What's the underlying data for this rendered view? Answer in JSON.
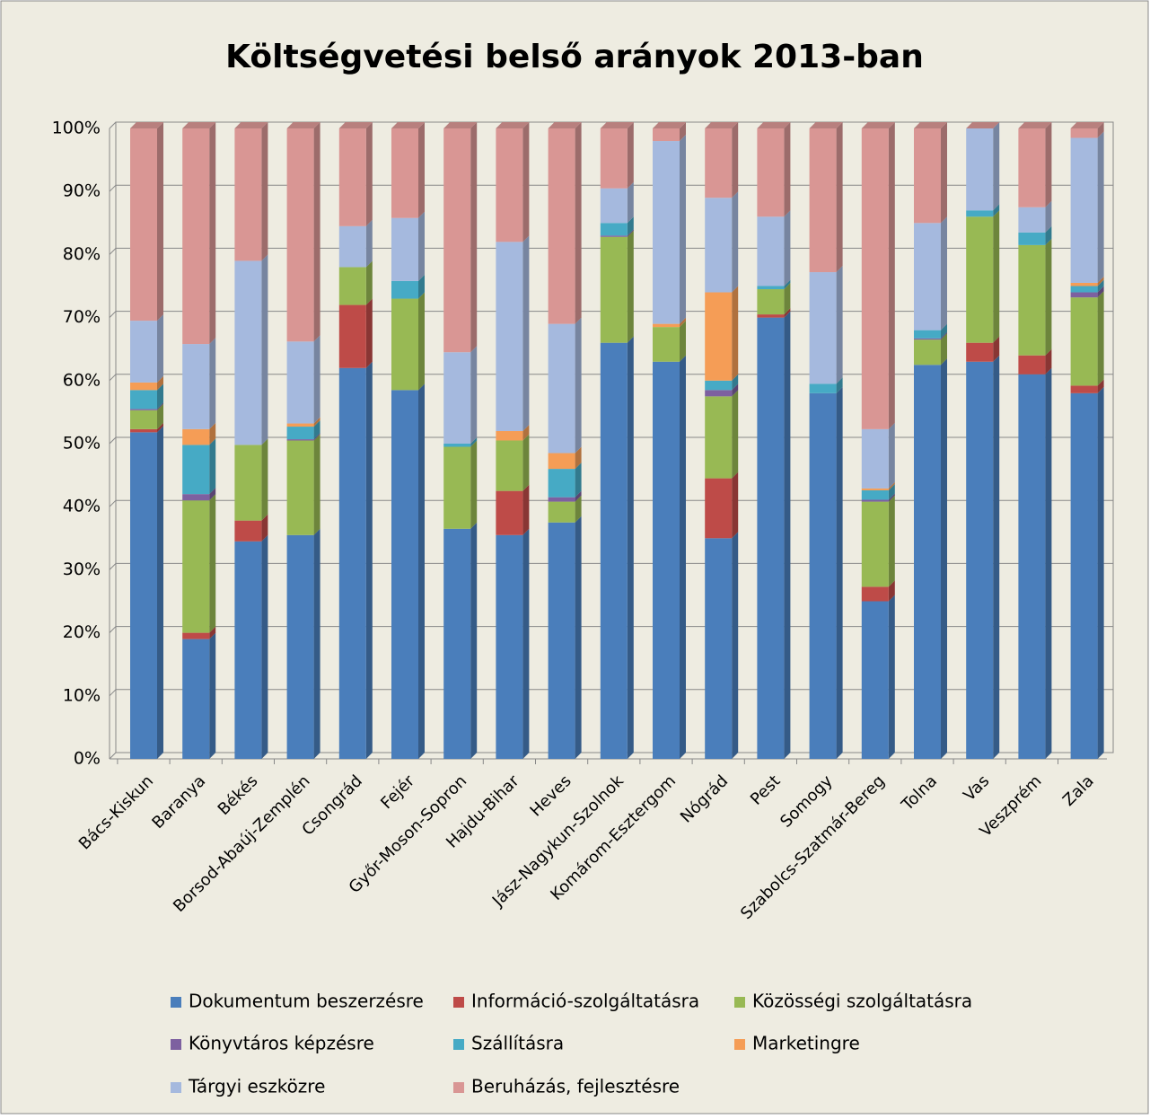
{
  "chart_data": {
    "type": "stacked_bar",
    "title": "Költségvetési belső arányok 2013-ban",
    "categories": [
      "Bács-Kiskun",
      "Baranya",
      "Békés",
      "Borsod-Abaúj-Zemplén",
      "Csongrád",
      "Fejér",
      "Győr-Moson-Sopron",
      "Hajdu-Bihar",
      "Heves",
      "Jász-Nagykun-Szolnok",
      "Komárom-Esztergom",
      "Nógrád",
      "Pest",
      "Somogy",
      "Szabolcs-Szatmár-Bereg",
      "Tolna",
      "Vas",
      "Veszprém",
      "Zala"
    ],
    "series": [
      {
        "name": "Dokumentum beszerzésre",
        "color": "#4a7ebb",
        "values": [
          51.8,
          19,
          34.5,
          35.5,
          62,
          58.5,
          36.5,
          35.5,
          37.5,
          66,
          63,
          35,
          70,
          58,
          25,
          62.5,
          63,
          61,
          58
        ]
      },
      {
        "name": "Információ-szolgáltatásra",
        "color": "#be4b48",
        "values": [
          0.5,
          1,
          3.3,
          0,
          10,
          0,
          0,
          7,
          0,
          0,
          0,
          9.5,
          0.5,
          0,
          2.3,
          0,
          3,
          3,
          1.2
        ]
      },
      {
        "name": "Közösségi szolgáltatásra",
        "color": "#98b954",
        "values": [
          3,
          21,
          12,
          15,
          6,
          14.5,
          13,
          8,
          3.3,
          16.8,
          5.5,
          13,
          4,
          0,
          13.5,
          4,
          20,
          17.5,
          14
        ]
      },
      {
        "name": "Könyvtáros képzésre",
        "color": "#7d60a0",
        "values": [
          0.2,
          1,
          0,
          0.2,
          0,
          0,
          0,
          0,
          0.7,
          0.2,
          0,
          1,
          0,
          0,
          0.3,
          0.2,
          0,
          0,
          0.8
        ]
      },
      {
        "name": "Szállításra",
        "color": "#46aac5",
        "values": [
          3,
          7.8,
          0,
          2,
          0,
          2.8,
          0.5,
          0,
          4.5,
          2,
          0,
          1.5,
          0.5,
          1.5,
          1.5,
          1.3,
          1,
          2,
          1
        ]
      },
      {
        "name": "Marketingre",
        "color": "#f59d56",
        "values": [
          1.2,
          2.5,
          0,
          0.5,
          0,
          0,
          0,
          1.5,
          2.5,
          0,
          0.5,
          14,
          0,
          0,
          0.3,
          0,
          0,
          0,
          0.5
        ]
      },
      {
        "name": "Tárgyi eszközre",
        "color": "#a5b9de",
        "values": [
          9.8,
          13.5,
          29.2,
          13,
          6.5,
          10,
          14.5,
          30,
          20.5,
          5.5,
          29,
          15,
          11,
          17.7,
          9.4,
          17,
          13,
          4,
          23
        ]
      },
      {
        "name": "Beruházás, fejlesztésre",
        "color": "#d99694",
        "values": [
          30.5,
          34.2,
          21,
          33.8,
          15.5,
          14.2,
          35.5,
          18,
          31,
          9.5,
          2,
          11,
          14,
          22.8,
          47.7,
          15,
          0,
          12.5,
          1.5
        ]
      }
    ],
    "ylim": [
      0,
      100
    ],
    "yticks": [
      {
        "value": 0,
        "label": "0%"
      },
      {
        "value": 10,
        "label": "10%"
      },
      {
        "value": 20,
        "label": "20%"
      },
      {
        "value": 30,
        "label": "30%"
      },
      {
        "value": 40,
        "label": "40%"
      },
      {
        "value": 50,
        "label": "50%"
      },
      {
        "value": 60,
        "label": "60%"
      },
      {
        "value": 70,
        "label": "70%"
      },
      {
        "value": 80,
        "label": "80%"
      },
      {
        "value": 90,
        "label": "90%"
      },
      {
        "value": 100,
        "label": "100%"
      }
    ],
    "grid": true
  }
}
